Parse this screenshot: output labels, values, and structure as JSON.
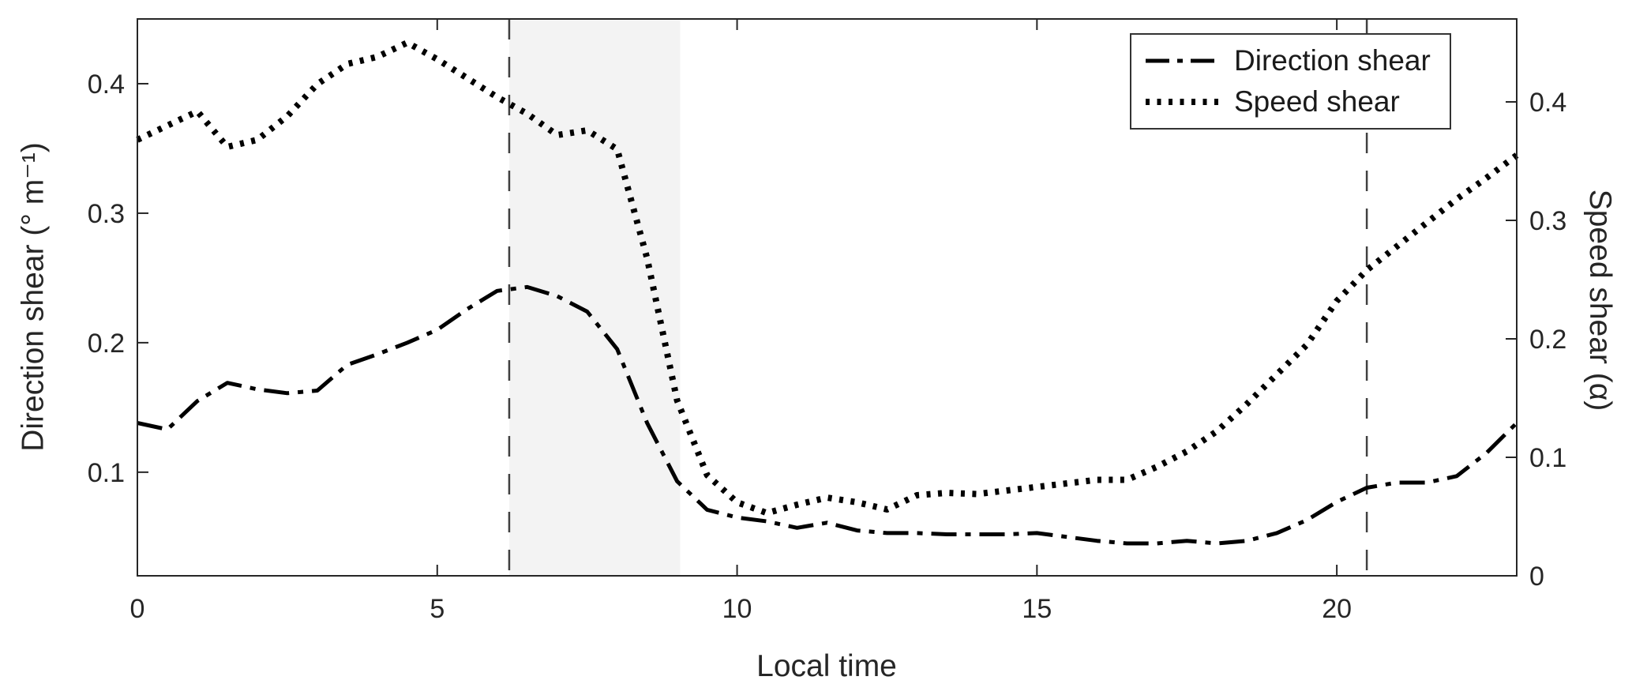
{
  "figure": {
    "background": "#ffffff"
  },
  "chart_data": {
    "type": "line",
    "title": "",
    "xlabel": "Local time",
    "ylabel_left": "Direction shear (° m⁻¹)",
    "ylabel_right": "Speed shear (α)",
    "xlim": [
      0,
      23
    ],
    "xticks": [
      0,
      5,
      10,
      15,
      20
    ],
    "ylim_left": [
      0.02,
      0.45
    ],
    "yticks_left": [
      0.1,
      0.2,
      0.3,
      0.4
    ],
    "ylim_right": [
      0,
      0.47
    ],
    "yticks_right": [
      0,
      0.1,
      0.2,
      0.3,
      0.4
    ],
    "grid": false,
    "axis_color": "#262626",
    "line_color": "#000000",
    "shaded_region": {
      "x_start": 6.2,
      "x_end": 9.05,
      "color": "#f3f3f3"
    },
    "vlines": {
      "x": [
        6.2,
        20.5
      ],
      "style": "dashed",
      "color": "#404040"
    },
    "x": [
      0,
      0.5,
      1,
      1.5,
      2,
      2.5,
      3,
      3.5,
      4,
      4.5,
      5,
      5.5,
      6,
      6.5,
      7,
      7.5,
      8,
      8.5,
      9,
      9.5,
      10,
      10.5,
      11,
      11.5,
      12,
      12.5,
      13,
      13.5,
      14,
      14.5,
      15,
      15.5,
      16,
      16.5,
      17,
      17.5,
      18,
      18.5,
      19,
      19.5,
      20,
      20.5,
      21,
      21.5,
      22,
      22.5,
      23
    ],
    "series": [
      {
        "name": "Direction shear",
        "axis": "left",
        "line_style": "dash-dot",
        "values": [
          0.138,
          0.133,
          0.155,
          0.169,
          0.164,
          0.161,
          0.163,
          0.183,
          0.191,
          0.2,
          0.21,
          0.226,
          0.24,
          0.243,
          0.236,
          0.224,
          0.195,
          0.138,
          0.093,
          0.071,
          0.065,
          0.062,
          0.057,
          0.061,
          0.055,
          0.053,
          0.053,
          0.052,
          0.052,
          0.052,
          0.053,
          0.05,
          0.047,
          0.045,
          0.045,
          0.047,
          0.045,
          0.047,
          0.053,
          0.063,
          0.077,
          0.088,
          0.092,
          0.092,
          0.097,
          0.115,
          0.138
        ]
      },
      {
        "name": "Speed shear",
        "axis": "right",
        "line_style": "dotted",
        "values": [
          0.368,
          0.38,
          0.392,
          0.362,
          0.368,
          0.388,
          0.415,
          0.432,
          0.438,
          0.45,
          0.436,
          0.42,
          0.404,
          0.39,
          0.372,
          0.376,
          0.36,
          0.268,
          0.148,
          0.085,
          0.062,
          0.053,
          0.06,
          0.066,
          0.062,
          0.056,
          0.068,
          0.07,
          0.069,
          0.072,
          0.075,
          0.078,
          0.081,
          0.081,
          0.092,
          0.105,
          0.122,
          0.145,
          0.17,
          0.195,
          0.232,
          0.258,
          0.278,
          0.298,
          0.318,
          0.336,
          0.355
        ]
      }
    ],
    "legend": {
      "position": "top-right",
      "entries": [
        "Direction shear",
        "Speed shear"
      ]
    }
  }
}
